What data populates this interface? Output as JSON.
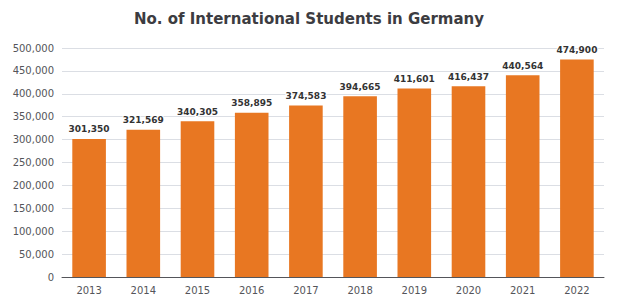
{
  "chart_data": {
    "type": "bar",
    "title": "No. of International Students in Germany",
    "categories": [
      "2013",
      "2014",
      "2015",
      "2016",
      "2017",
      "2018",
      "2019",
      "2020",
      "2021",
      "2022"
    ],
    "values": [
      301350,
      321569,
      340305,
      358895,
      374583,
      394665,
      411601,
      416437,
      440564,
      474900
    ],
    "value_labels": [
      "301,350",
      "321,569",
      "340,305",
      "358,895",
      "374,583",
      "394,665",
      "411,601",
      "416,437",
      "440,564",
      "474,900"
    ],
    "data_labels": true,
    "color": "#E87722",
    "ylim": [
      0,
      500000
    ],
    "yticks": [
      0,
      {
        "value": 50000,
        "label": "50,000"
      },
      {
        "value": 100000,
        "label": "100,000"
      },
      {
        "value": 150000,
        "label": "150,000"
      },
      {
        "value": 200000,
        "label": "200,000"
      },
      {
        "value": 250000,
        "label": "250,000"
      },
      {
        "value": 300000,
        "label": "300,000"
      },
      {
        "value": 350000,
        "label": "350,000"
      },
      {
        "value": 400000,
        "label": "400,000"
      },
      {
        "value": 450000,
        "label": "450,000"
      },
      {
        "value": 500000,
        "label": "500,000"
      }
    ],
    "grid": true
  }
}
